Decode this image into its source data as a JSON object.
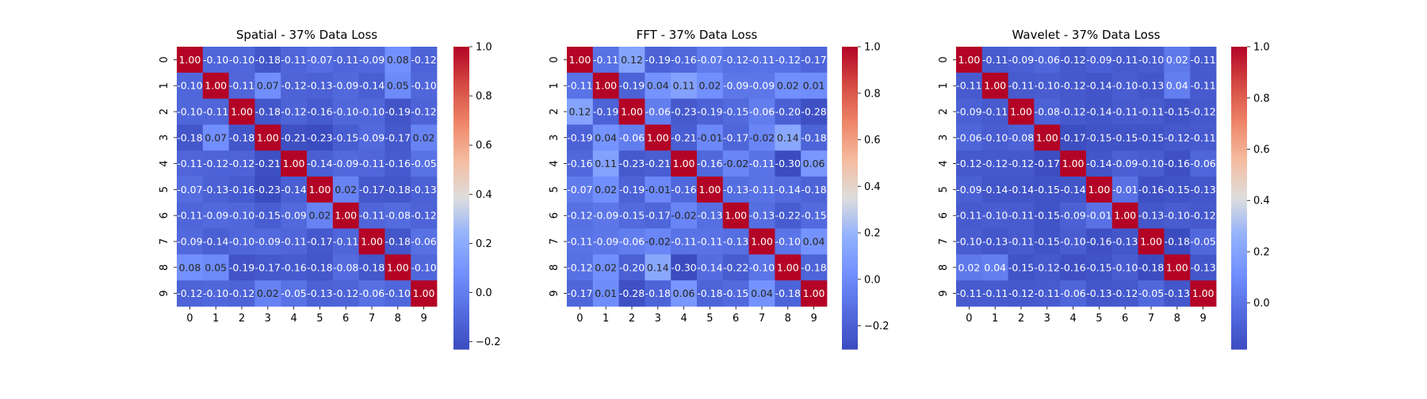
{
  "chart_data": [
    {
      "type": "heatmap",
      "title": "Spatial - 37% Data Loss",
      "x_labels": [
        "0",
        "1",
        "2",
        "3",
        "4",
        "5",
        "6",
        "7",
        "8",
        "9"
      ],
      "y_labels": [
        "0",
        "1",
        "2",
        "3",
        "4",
        "5",
        "6",
        "7",
        "8",
        "9"
      ],
      "values": [
        [
          1.0,
          -0.1,
          -0.1,
          -0.18,
          -0.11,
          -0.07,
          -0.11,
          -0.09,
          0.08,
          -0.12
        ],
        [
          -0.1,
          1.0,
          -0.11,
          0.07,
          -0.12,
          -0.13,
          -0.09,
          -0.14,
          0.05,
          -0.1
        ],
        [
          -0.1,
          -0.11,
          1.0,
          -0.18,
          -0.12,
          -0.16,
          -0.1,
          -0.1,
          -0.19,
          -0.12
        ],
        [
          -0.18,
          0.07,
          -0.18,
          1.0,
          -0.21,
          -0.23,
          -0.15,
          -0.09,
          -0.17,
          0.02
        ],
        [
          -0.11,
          -0.12,
          -0.12,
          -0.21,
          1.0,
          -0.14,
          -0.09,
          -0.11,
          -0.16,
          -0.05
        ],
        [
          -0.07,
          -0.13,
          -0.16,
          -0.23,
          -0.14,
          1.0,
          0.02,
          -0.17,
          -0.18,
          -0.13
        ],
        [
          -0.11,
          -0.09,
          -0.1,
          -0.15,
          -0.09,
          0.02,
          1.0,
          -0.11,
          -0.08,
          -0.12
        ],
        [
          -0.09,
          -0.14,
          -0.1,
          -0.09,
          -0.11,
          -0.17,
          -0.11,
          1.0,
          -0.18,
          -0.06
        ],
        [
          0.08,
          0.05,
          -0.19,
          -0.17,
          -0.16,
          -0.18,
          -0.08,
          -0.18,
          1.0,
          -0.1
        ],
        [
          -0.12,
          -0.1,
          -0.12,
          0.02,
          -0.05,
          -0.13,
          -0.12,
          -0.06,
          -0.1,
          1.0
        ]
      ],
      "colorbar": {
        "vmin": -0.23,
        "vmax": 1.0,
        "ticks": [
          -0.2,
          0.0,
          0.2,
          0.4,
          0.6,
          0.8,
          1.0
        ],
        "tick_labels": [
          "−0.2",
          "0.0",
          "0.2",
          "0.4",
          "0.6",
          "0.8",
          "1.0"
        ]
      },
      "colormap": "coolwarm",
      "annotation_format": "0.00"
    },
    {
      "type": "heatmap",
      "title": "FFT - 37% Data Loss",
      "x_labels": [
        "0",
        "1",
        "2",
        "3",
        "4",
        "5",
        "6",
        "7",
        "8",
        "9"
      ],
      "y_labels": [
        "0",
        "1",
        "2",
        "3",
        "4",
        "5",
        "6",
        "7",
        "8",
        "9"
      ],
      "values": [
        [
          1.0,
          -0.11,
          0.12,
          -0.19,
          -0.16,
          -0.07,
          -0.12,
          -0.11,
          -0.12,
          -0.17
        ],
        [
          -0.11,
          1.0,
          -0.19,
          0.04,
          0.11,
          0.02,
          -0.09,
          -0.09,
          0.02,
          0.01
        ],
        [
          0.12,
          -0.19,
          1.0,
          -0.06,
          -0.23,
          -0.19,
          -0.15,
          -0.06,
          -0.2,
          -0.28
        ],
        [
          -0.19,
          0.04,
          -0.06,
          1.0,
          -0.21,
          -0.01,
          -0.17,
          -0.02,
          0.14,
          -0.18
        ],
        [
          -0.16,
          0.11,
          -0.23,
          -0.21,
          1.0,
          -0.16,
          -0.02,
          -0.11,
          -0.3,
          0.06
        ],
        [
          -0.07,
          0.02,
          -0.19,
          -0.01,
          -0.16,
          1.0,
          -0.13,
          -0.11,
          -0.14,
          -0.18
        ],
        [
          -0.12,
          -0.09,
          -0.15,
          -0.17,
          -0.02,
          -0.13,
          1.0,
          -0.13,
          -0.22,
          -0.15
        ],
        [
          -0.11,
          -0.09,
          -0.06,
          -0.02,
          -0.11,
          -0.11,
          -0.13,
          1.0,
          -0.1,
          0.04
        ],
        [
          -0.12,
          0.02,
          -0.2,
          0.14,
          -0.3,
          -0.14,
          -0.22,
          -0.1,
          1.0,
          -0.18
        ],
        [
          -0.17,
          0.01,
          -0.28,
          -0.18,
          0.06,
          -0.18,
          -0.15,
          0.04,
          -0.18,
          1.0
        ]
      ],
      "colorbar": {
        "vmin": -0.3,
        "vmax": 1.0,
        "ticks": [
          -0.2,
          0.0,
          0.2,
          0.4,
          0.6,
          0.8,
          1.0
        ],
        "tick_labels": [
          "−0.2",
          "0.0",
          "0.2",
          "0.4",
          "0.6",
          "0.8",
          "1.0"
        ]
      },
      "colormap": "coolwarm",
      "annotation_format": "0.00"
    },
    {
      "type": "heatmap",
      "title": "Wavelet - 37% Data Loss",
      "x_labels": [
        "0",
        "1",
        "2",
        "3",
        "4",
        "5",
        "6",
        "7",
        "8",
        "9"
      ],
      "y_labels": [
        "0",
        "1",
        "2",
        "3",
        "4",
        "5",
        "6",
        "7",
        "8",
        "9"
      ],
      "values": [
        [
          1.0,
          -0.11,
          -0.09,
          -0.06,
          -0.12,
          -0.09,
          -0.11,
          -0.1,
          0.02,
          -0.11
        ],
        [
          -0.11,
          1.0,
          -0.11,
          -0.1,
          -0.12,
          -0.14,
          -0.1,
          -0.13,
          0.04,
          -0.11
        ],
        [
          -0.09,
          -0.11,
          1.0,
          -0.08,
          -0.12,
          -0.14,
          -0.11,
          -0.11,
          -0.15,
          -0.12
        ],
        [
          -0.06,
          -0.1,
          -0.08,
          1.0,
          -0.17,
          -0.15,
          -0.15,
          -0.15,
          -0.12,
          -0.11
        ],
        [
          -0.12,
          -0.12,
          -0.12,
          -0.17,
          1.0,
          -0.14,
          -0.09,
          -0.1,
          -0.16,
          -0.06
        ],
        [
          -0.09,
          -0.14,
          -0.14,
          -0.15,
          -0.14,
          1.0,
          -0.01,
          -0.16,
          -0.15,
          -0.13
        ],
        [
          -0.11,
          -0.1,
          -0.11,
          -0.15,
          -0.09,
          -0.01,
          1.0,
          -0.13,
          -0.1,
          -0.12
        ],
        [
          -0.1,
          -0.13,
          -0.11,
          -0.15,
          -0.1,
          -0.16,
          -0.13,
          1.0,
          -0.18,
          -0.05
        ],
        [
          0.02,
          0.04,
          -0.15,
          -0.12,
          -0.16,
          -0.15,
          -0.1,
          -0.18,
          1.0,
          -0.13
        ],
        [
          -0.11,
          -0.11,
          -0.12,
          -0.11,
          -0.06,
          -0.13,
          -0.12,
          -0.05,
          -0.13,
          1.0
        ]
      ],
      "colorbar": {
        "vmin": -0.18,
        "vmax": 1.0,
        "ticks": [
          0.0,
          0.2,
          0.4,
          0.6,
          0.8,
          1.0
        ],
        "tick_labels": [
          "0.0",
          "0.2",
          "0.4",
          "0.6",
          "0.8",
          "1.0"
        ]
      },
      "colormap": "coolwarm",
      "annotation_format": "0.00"
    }
  ]
}
